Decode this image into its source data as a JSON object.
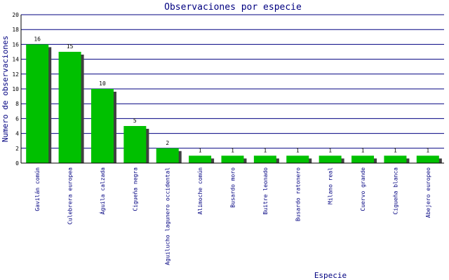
{
  "chart_data": {
    "type": "bar",
    "title": "Observaciones por especie",
    "xlabel": "Especie",
    "ylabel": "Numero de observaciones",
    "ylim": [
      0,
      20
    ],
    "yticks": [
      0,
      2,
      4,
      6,
      8,
      10,
      12,
      14,
      16,
      18,
      20
    ],
    "grid": true,
    "categories": [
      "Gavilán común",
      "Culebrera europea",
      "Águila calzada",
      "Cigueña negra",
      "Aguilucho lagunero occidental",
      "Alimoche común",
      "Busardo moro",
      "Buitre leonado",
      "Busardo ratonero",
      "Milano real",
      "Cuervo grande",
      "Cigueña blanca",
      "Abejero europeo"
    ],
    "values": [
      16,
      15,
      10,
      5,
      2,
      1,
      1,
      1,
      1,
      1,
      1,
      1,
      1
    ],
    "colors": {
      "bar": "#00c000",
      "shadow": "#404040",
      "grid": "#000080",
      "axis": "#000000",
      "text": "#000080"
    }
  }
}
